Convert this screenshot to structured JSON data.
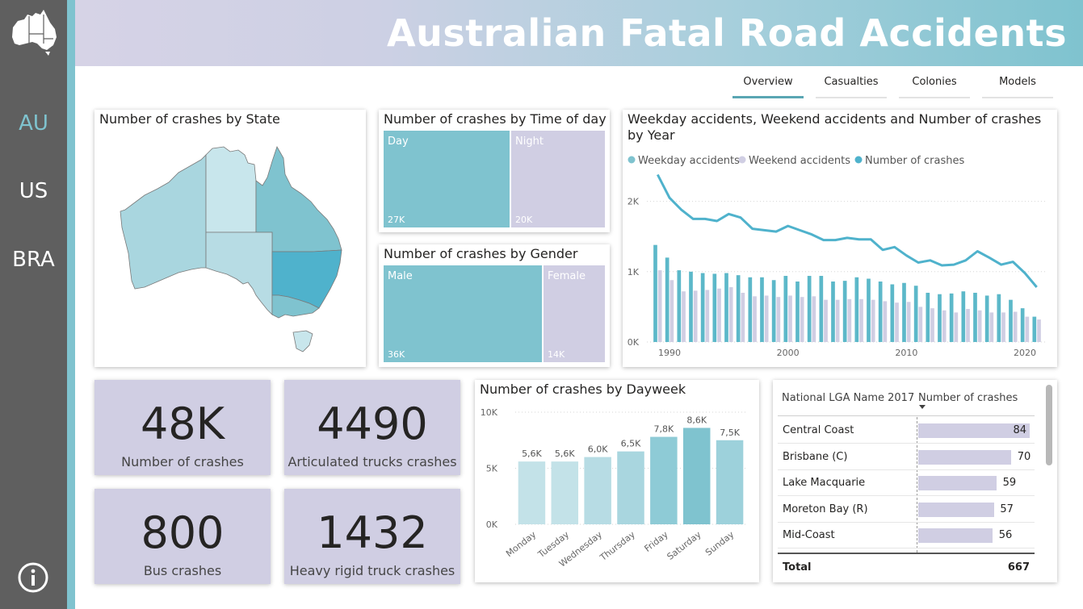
{
  "app": {
    "title": "Australian Fatal Road Accidents",
    "nav": [
      {
        "label": "AU",
        "active": true
      },
      {
        "label": "US",
        "active": false
      },
      {
        "label": "BRA",
        "active": false
      }
    ],
    "info_icon": "info-icon",
    "logo_icon": "australia-map-icon"
  },
  "tabs": [
    {
      "label": "Overview",
      "active": true
    },
    {
      "label": "Casualties",
      "active": false
    },
    {
      "label": "Colonies",
      "active": false
    },
    {
      "label": "Models",
      "active": false
    }
  ],
  "colors": {
    "accent": "#7fc3cf",
    "lavender": "#d0cee3",
    "teal_dark": "#4fb2cc",
    "rail": "#5f5f5f"
  },
  "state_map": {
    "title": "Number of crashes by State"
  },
  "time_of_day": {
    "title": "Number of crashes by Time of day",
    "items": [
      {
        "label": "Day",
        "value": "27K",
        "share": 0.574,
        "color": "#7fc3cf"
      },
      {
        "label": "Night",
        "value": "20K",
        "share": 0.426,
        "color": "#d0cee3"
      }
    ]
  },
  "gender": {
    "title": "Number of crashes by Gender",
    "items": [
      {
        "label": "Male",
        "value": "36K",
        "share": 0.72,
        "color": "#7fc3cf"
      },
      {
        "label": "Female",
        "value": "14K",
        "share": 0.28,
        "color": "#d0cee3"
      }
    ]
  },
  "kpis": [
    {
      "value": "48K",
      "label": "Number of crashes"
    },
    {
      "value": "4490",
      "label": "Articulated trucks crashes"
    },
    {
      "value": "800",
      "label": "Bus crashes"
    },
    {
      "value": "1432",
      "label": "Heavy rigid truck crashes"
    }
  ],
  "lga_table": {
    "col1": "National LGA Name 2017",
    "col2": "Number of crashes",
    "rows": [
      {
        "name": "Central Coast",
        "value": 84
      },
      {
        "name": "Brisbane (C)",
        "value": 70
      },
      {
        "name": "Lake Macquarie",
        "value": 59
      },
      {
        "name": "Moreton Bay (R)",
        "value": 57
      },
      {
        "name": "Mid-Coast",
        "value": 56
      }
    ],
    "total_label": "Total",
    "total_value": "667"
  },
  "chart_data": [
    {
      "type": "line",
      "title": "Weekday accidents, Weekend accidents and Number of crashes by Year",
      "legend": [
        "Weekday accidents",
        "Weekend accidents",
        "Number of crashes"
      ],
      "legend_position": "top-left",
      "x": [
        1989,
        1990,
        1991,
        1992,
        1993,
        1994,
        1995,
        1996,
        1997,
        1998,
        1999,
        2000,
        2001,
        2002,
        2003,
        2004,
        2005,
        2006,
        2007,
        2008,
        2009,
        2010,
        2011,
        2012,
        2013,
        2014,
        2015,
        2016,
        2017,
        2018,
        2019,
        2020,
        2021
      ],
      "x_ticks": [
        "1990",
        "2000",
        "2010",
        "2020"
      ],
      "y_ticks": [
        "0K",
        "1K",
        "2K"
      ],
      "ylim": [
        0,
        2500
      ],
      "grid": true,
      "series": [
        {
          "name": "Weekday accidents",
          "color": "#5cb8c9",
          "type": "bar",
          "values": [
            1380,
            1200,
            1020,
            1000,
            980,
            970,
            980,
            950,
            920,
            920,
            880,
            940,
            860,
            940,
            940,
            860,
            870,
            920,
            900,
            860,
            820,
            840,
            800,
            700,
            680,
            690,
            720,
            700,
            660,
            680,
            600,
            480,
            360
          ]
        },
        {
          "name": "Weekend accidents",
          "color": "#d0cee3",
          "type": "bar",
          "values": [
            1020,
            880,
            720,
            730,
            740,
            760,
            780,
            700,
            650,
            660,
            640,
            660,
            640,
            650,
            600,
            600,
            610,
            610,
            600,
            580,
            560,
            570,
            500,
            480,
            450,
            420,
            470,
            450,
            420,
            420,
            430,
            360,
            320
          ]
        },
        {
          "name": "Number of crashes",
          "color": "#4fb2cc",
          "type": "line",
          "values": [
            2380,
            2050,
            1880,
            1750,
            1750,
            1720,
            1820,
            1770,
            1610,
            1590,
            1570,
            1650,
            1590,
            1530,
            1450,
            1450,
            1480,
            1460,
            1460,
            1310,
            1350,
            1230,
            1130,
            1160,
            1090,
            1100,
            1160,
            1290,
            1200,
            1100,
            1140,
            980,
            780
          ]
        }
      ]
    },
    {
      "type": "bar",
      "title": "Number of crashes by Dayweek",
      "categories": [
        "Monday",
        "Tuesday",
        "Wednesday",
        "Thursday",
        "Friday",
        "Saturday",
        "Sunday"
      ],
      "values": [
        5600,
        5600,
        6000,
        6500,
        7800,
        8600,
        7500
      ],
      "data_labels": [
        "5,6K",
        "5,6K",
        "6,0K",
        "6,5K",
        "7,8K",
        "8,6K",
        "7,5K"
      ],
      "y_ticks": [
        "0K",
        "5K",
        "10K"
      ],
      "ylim": [
        0,
        10000
      ],
      "colors": [
        "#c3e2e8",
        "#c3e2e8",
        "#b7dce4",
        "#a9d6df",
        "#8ecbd6",
        "#7fc3cf",
        "#9dd1db"
      ]
    }
  ]
}
